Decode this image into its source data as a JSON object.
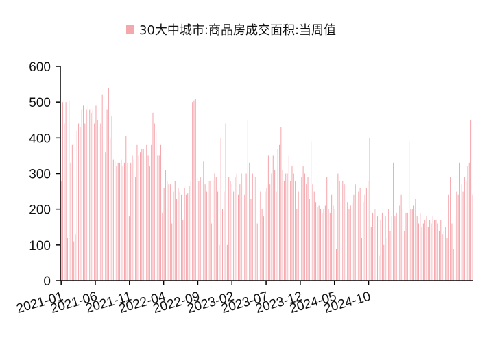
{
  "chart_data": {
    "type": "bar",
    "title": "",
    "xlabel": "",
    "ylabel": "",
    "ylim": [
      0,
      600
    ],
    "yticks": [
      0,
      100,
      200,
      300,
      400,
      500,
      600
    ],
    "x_tick_labels": [
      "2021-01",
      "2021-06",
      "2021-11",
      "2022-04",
      "2022-09",
      "2023-02",
      "2023-07",
      "2023-12",
      "2024-05",
      "2024-10"
    ],
    "legend": {
      "position": "top-center"
    },
    "grid": false,
    "bar_color": "#f4a7ad",
    "series": [
      {
        "name": "30大中城市:商品房成交面积:当周值",
        "start_week": "2021-01",
        "values": [
          280,
          500,
          440,
          500,
          120,
          505,
          330,
          380,
          110,
          130,
          420,
          440,
          430,
          480,
          490,
          440,
          480,
          490,
          480,
          470,
          480,
          440,
          490,
          450,
          430,
          440,
          520,
          400,
          360,
          480,
          540,
          400,
          460,
          340,
          335,
          320,
          330,
          330,
          340,
          320,
          330,
          405,
          330,
          180,
          330,
          350,
          340,
          290,
          380,
          350,
          360,
          370,
          370,
          350,
          380,
          350,
          320,
          380,
          470,
          440,
          420,
          350,
          350,
          380,
          190,
          260,
          310,
          280,
          270,
          270,
          160,
          250,
          280,
          230,
          260,
          250,
          240,
          170,
          260,
          240,
          245,
          265,
          280,
          500,
          505,
          510,
          290,
          280,
          290,
          280,
          335,
          270,
          250,
          280,
          280,
          160,
          280,
          300,
          290,
          250,
          100,
          400,
          200,
          250,
          440,
          100,
          290,
          280,
          270,
          250,
          290,
          300,
          240,
          270,
          300,
          290,
          240,
          300,
          450,
          330,
          230,
          300,
          290,
          290,
          160,
          230,
          250,
          200,
          180,
          250,
          260,
          350,
          270,
          300,
          350,
          310,
          250,
          370,
          380,
          430,
          310,
          280,
          300,
          300,
          350,
          280,
          320,
          300,
          280,
          200,
          250,
          300,
          290,
          320,
          300,
          270,
          290,
          230,
          390,
          270,
          250,
          220,
          205,
          210,
          200,
          190,
          200,
          210,
          290,
          200,
          190,
          240,
          210,
          200,
          90,
          300,
          280,
          220,
          280,
          270,
          270,
          220,
          200,
          210,
          220,
          240,
          270,
          230,
          250,
          260,
          120,
          220,
          240,
          260,
          280,
          400,
          150,
          190,
          200,
          200,
          180,
          70,
          170,
          190,
          100,
          180,
          120,
          200,
          140,
          180,
          330,
          180,
          190,
          150,
          210,
          240,
          200,
          140,
          190,
          190,
          390,
          200,
          200,
          210,
          230,
          180,
          160,
          190,
          150,
          160,
          170,
          180,
          150,
          170,
          160,
          180,
          170,
          170,
          160,
          140,
          170,
          130,
          140,
          150,
          120,
          240,
          290,
          160,
          90,
          180,
          250,
          240,
          330,
          270,
          250,
          290,
          280,
          320,
          330,
          450,
          240
        ]
      }
    ]
  }
}
